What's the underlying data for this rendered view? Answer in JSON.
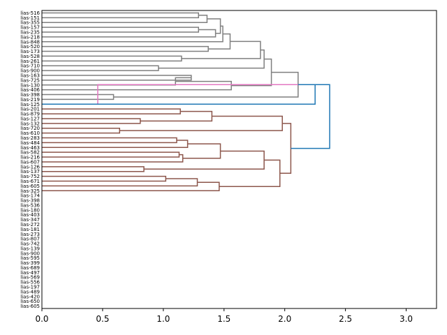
{
  "chart_data": {
    "type": "dendrogram",
    "orientation": "right",
    "xlabel": "",
    "ylabel": "",
    "xlim": [
      0,
      3.25
    ],
    "xticks": [
      0.0,
      0.5,
      1.0,
      1.5,
      2.0,
      2.5,
      3.0
    ],
    "xtick_labels": [
      "0.0",
      "0.5",
      "1.0",
      "1.5",
      "2.0",
      "2.5",
      "3.0"
    ],
    "colors": {
      "above_threshold": "#1f77b4",
      "c1": "#7f7f7f",
      "c2": "#e377c2",
      "c3": "#8c564b",
      "c4": "#9467bd",
      "c5": "#d62728",
      "c6": "#2ca02c",
      "c7": "#ff7f0e"
    },
    "leaves": [
      "lias-516",
      "lias-151",
      "lias-355",
      "lias-157",
      "lias-235",
      "lias-218",
      "lias-848",
      "lias-520",
      "lias-173",
      "lias-528",
      "lias-261",
      "lias-710",
      "lias-900",
      "lias-163",
      "lias-725",
      "lias-130",
      "lias-406",
      "lias-398",
      "lias-219",
      "lias-125",
      "lias-201",
      "lias-879",
      "lias-127",
      "lias-132",
      "lias-720",
      "lias-610",
      "lias-283",
      "lias-484",
      "lias-463",
      "lias-582",
      "lias-216",
      "lias-607",
      "lias-126",
      "lias-137",
      "lias-752",
      "lias-671",
      "lias-605",
      "lias-325",
      "lias-174",
      "lias-398",
      "lias-536",
      "lias-180",
      "lias-403",
      "lias-347",
      "lias-272",
      "lias-181",
      "lias-273",
      "lias-807",
      "lias-742",
      "lias-139",
      "lias-900",
      "lias-595",
      "lias-399",
      "lias-689",
      "lias-497",
      "lias-569",
      "lias-556",
      "lias-197",
      "lias-489",
      "lias-420",
      "lias-650",
      "lias-605"
    ],
    "links": [
      {
        "from": [
          0,
          1
        ],
        "height": 1.29,
        "color": "c1"
      },
      {
        "from": [
          0.5,
          2
        ],
        "height": 1.36,
        "color": "c1"
      },
      {
        "from": [
          3,
          4
        ],
        "height": 1.29,
        "color": "c1"
      },
      {
        "from": [
          3.5,
          5
        ],
        "height": 1.43,
        "color": "c1"
      },
      {
        "from": [
          1.25,
          4.25
        ],
        "height": 1.47,
        "color": "c1"
      },
      {
        "from": [
          2.75,
          6
        ],
        "height": 1.49,
        "color": "c1"
      },
      {
        "from": [
          7,
          8
        ],
        "height": 1.37,
        "color": "c1"
      },
      {
        "from": [
          4.375,
          7.5
        ],
        "height": 1.55,
        "color": "c1"
      },
      {
        "from": [
          9,
          10
        ],
        "height": 1.15,
        "color": "c1"
      },
      {
        "from": [
          5.9375,
          9.5
        ],
        "height": 1.8,
        "color": "c1"
      },
      {
        "from": [
          11,
          12
        ],
        "height": 0.96,
        "color": "c1"
      },
      {
        "from": [
          7.71875,
          11.5
        ],
        "height": 1.83,
        "color": "c1"
      },
      {
        "from": [
          13,
          14
        ],
        "height": 1.23,
        "color": "c1"
      },
      {
        "from": [
          13.5,
          15
        ],
        "height": 1.1,
        "color": "c1"
      },
      {
        "from": [
          14.25,
          16
        ],
        "height": 1.56,
        "color": "c1"
      },
      {
        "from": [
          9.609375,
          15.125
        ],
        "height": 1.89,
        "color": "c1"
      },
      {
        "from": [
          17,
          18
        ],
        "height": 0.59,
        "color": "c1"
      },
      {
        "from": [
          12.3671875,
          17.5
        ],
        "height": 2.11,
        "color": "c1"
      },
      {
        "from": [
          14.93359375,
          19
        ],
        "height": 0.46,
        "color": "c2"
      },
      {
        "from": [
          14.93359375,
          19
        ],
        "height": 2.25,
        "color": "above_threshold"
      },
      {
        "from": [
          20,
          21
        ],
        "height": 1.14,
        "color": "c3"
      },
      {
        "from": [
          22,
          23
        ],
        "height": 0.81,
        "color": "c3"
      },
      {
        "from": [
          20.5,
          22.5
        ],
        "height": 1.4,
        "color": "c3"
      },
      {
        "from": [
          24,
          25
        ],
        "height": 0.64,
        "color": "c3"
      },
      {
        "from": [
          21.5,
          24.5
        ],
        "height": 1.98,
        "color": "c3"
      },
      {
        "from": [
          26,
          27
        ],
        "height": 1.11,
        "color": "c3"
      },
      {
        "from": [
          26.5,
          28
        ],
        "height": 1.2,
        "color": "c3"
      },
      {
        "from": [
          29,
          30
        ],
        "height": 1.13,
        "color": "c3"
      },
      {
        "from": [
          29.5,
          31
        ],
        "height": 1.16,
        "color": "c3"
      },
      {
        "from": [
          27.25,
          30.25
        ],
        "height": 1.47,
        "color": "c3"
      },
      {
        "from": [
          32,
          33
        ],
        "height": 0.84,
        "color": "c3"
      },
      {
        "from": [
          28.75,
          32.5
        ],
        "height": 1.83,
        "color": "c3"
      },
      {
        "from": [
          34,
          35
        ],
        "height": 1.02,
        "color": "c3"
      },
      {
        "from": [
          34.5,
          36
        ],
        "height": 1.28,
        "color": "c3"
      },
      {
        "from": [
          35.25,
          37
        ],
        "height": 1.46,
        "color": "c3"
      },
      {
        "from": [
          30.625,
          36.125
        ],
        "height": 1.96,
        "color": "c3"
      },
      {
        "from": [
          23.0,
          33.375
        ],
        "height": 2.05,
        "color": "c3"
      },
      {
        "from": [
          14.93359375,
          28.1875
        ],
        "height": 2.37,
        "color": "above_threshold"
      }
    ],
    "series_note": "Leaf order top-to-bottom as listed; heights in data units read from the x axis."
  }
}
